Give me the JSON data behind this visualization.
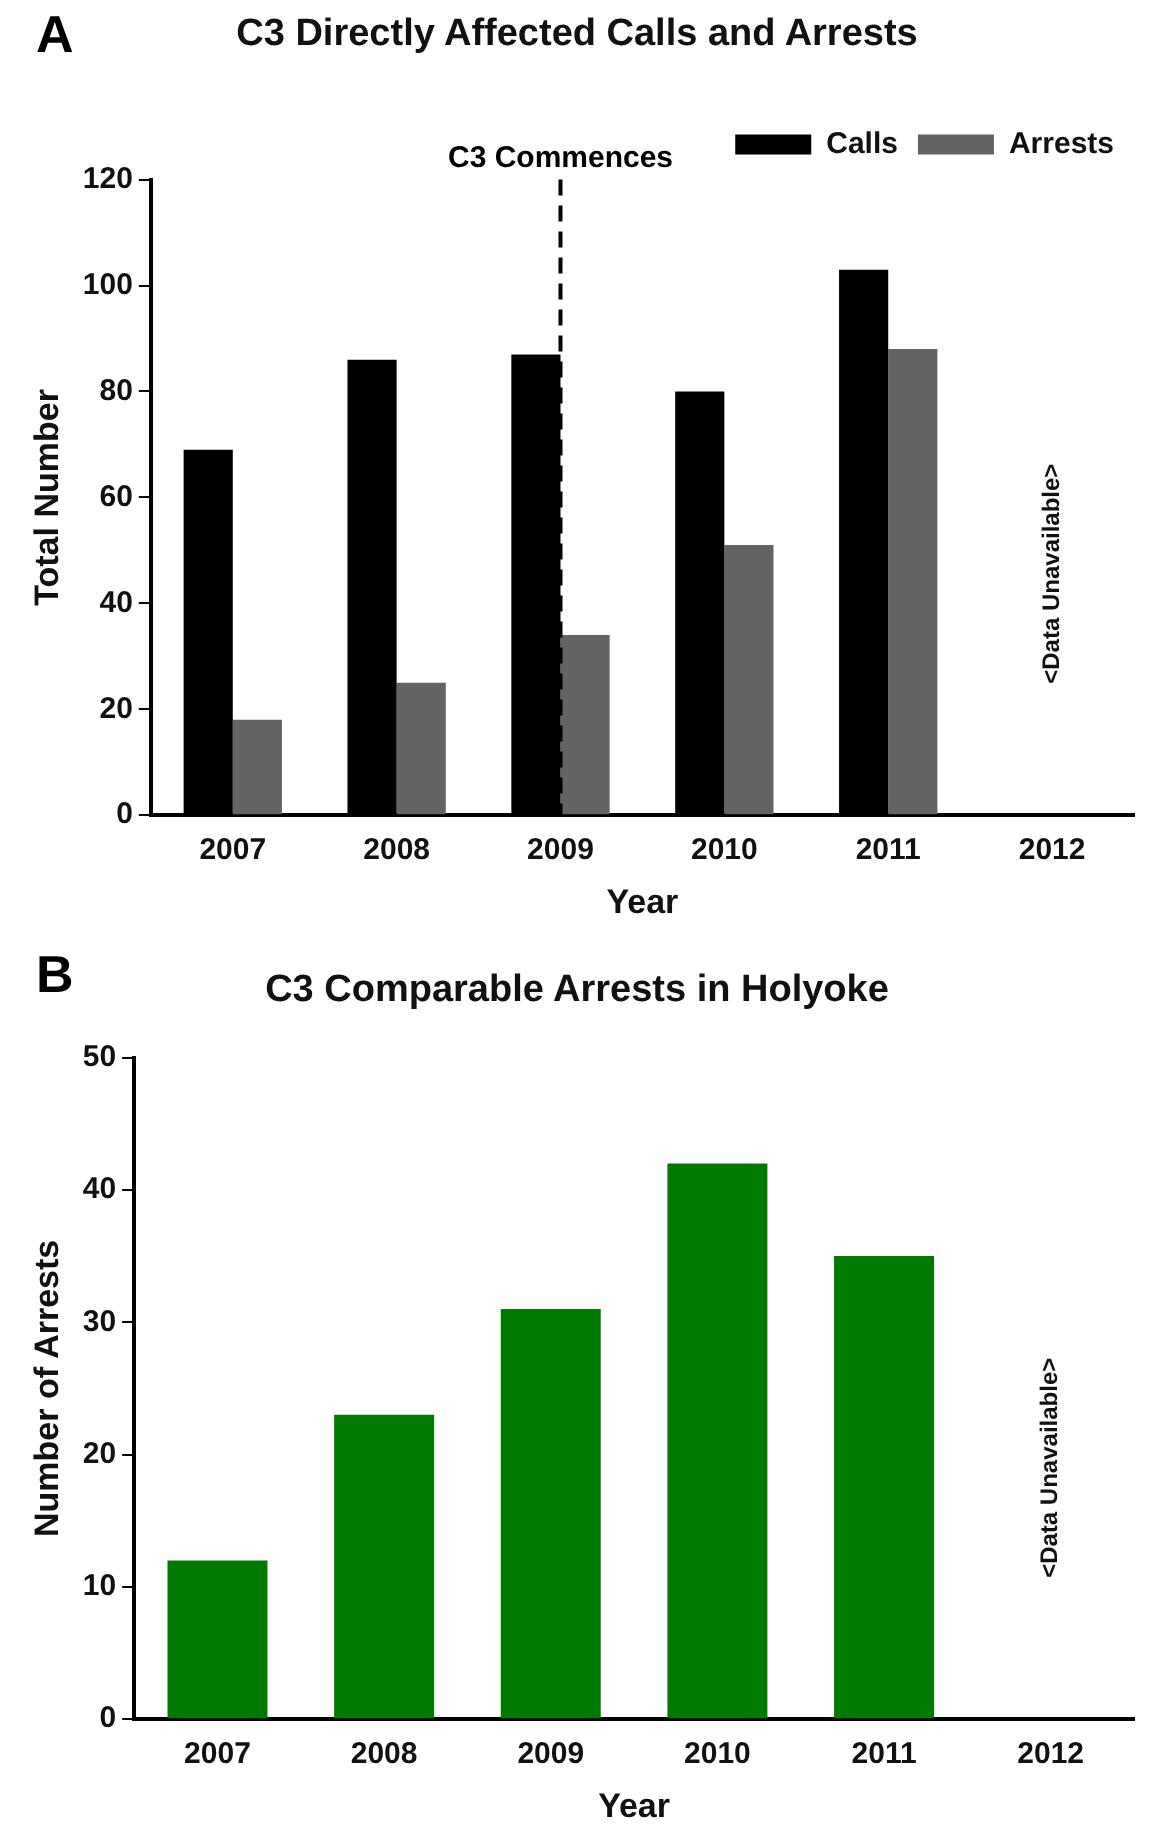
{
  "chart_data": [
    {
      "type": "bar",
      "title": "C3 Directly Affected Calls and Arrests",
      "xlabel": "Year",
      "ylabel": "Total Number",
      "categories": [
        "2007",
        "2008",
        "2009",
        "2010",
        "2011",
        "2012"
      ],
      "series": [
        {
          "name": "Calls",
          "color": "#000000",
          "values": [
            69,
            86,
            87,
            80,
            103,
            null
          ]
        },
        {
          "name": "Arrests",
          "color": "#636363",
          "values": [
            18,
            25,
            34,
            51,
            88,
            null
          ]
        }
      ],
      "ylim": [
        0,
        120
      ],
      "yticks": [
        0,
        20,
        40,
        60,
        80,
        100,
        120
      ],
      "grid": false,
      "legend": "top right",
      "ref_lines": [
        {
          "axis": "x",
          "value": "2009",
          "label": "C3 Commences",
          "color": "#000000",
          "line_style": "dashed"
        }
      ],
      "annotations": [
        "A",
        "<Data Unavailable>"
      ]
    },
    {
      "type": "bar",
      "title": "C3 Comparable Arrests in Holyoke",
      "xlabel": "Year",
      "ylabel": "Number of Arrests",
      "categories": [
        "2007",
        "2008",
        "2009",
        "2010",
        "2011",
        "2012"
      ],
      "series": [
        {
          "color": "#007a00",
          "values": [
            12,
            23,
            31,
            42,
            35,
            null
          ]
        }
      ],
      "ylim": [
        0,
        50
      ],
      "yticks": [
        0,
        10,
        20,
        30,
        40,
        50
      ],
      "grid": false,
      "annotations": [
        "B",
        "<Data Unavailable>"
      ]
    }
  ]
}
